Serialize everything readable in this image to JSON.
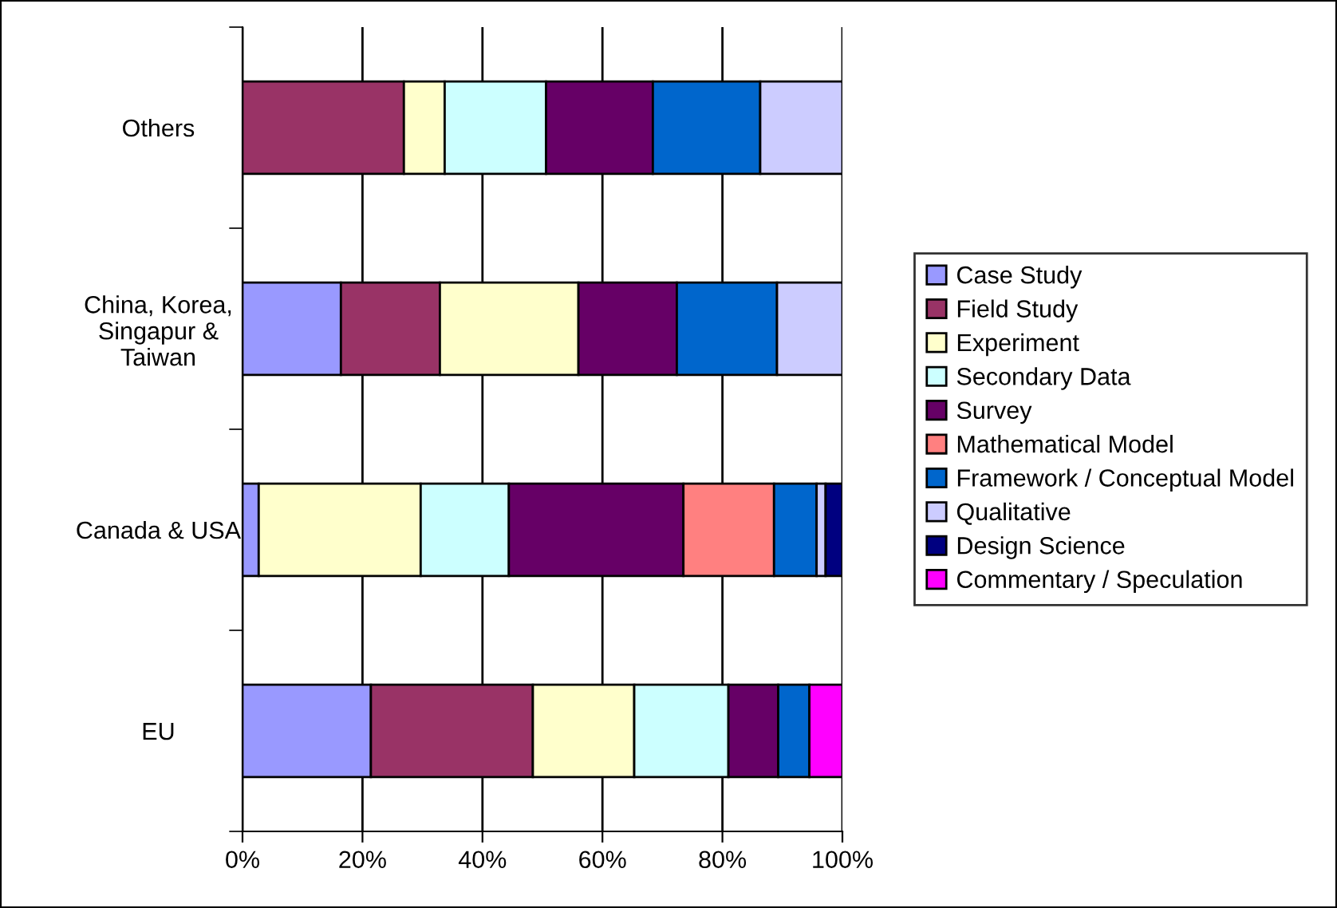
{
  "chart_data": {
    "type": "bar",
    "orientation": "horizontal",
    "stacked": true,
    "categories": [
      "Others",
      "China, Korea,\nSingapur &\nTaiwan",
      "Canada & USA",
      "EU"
    ],
    "series": [
      {
        "name": "Case Study",
        "color": "#9999ff",
        "values": [
          null,
          16.4,
          2.7,
          21.4
        ]
      },
      {
        "name": "Field Study",
        "color": "#993366",
        "values": [
          26.9,
          16.5,
          null,
          27.0
        ]
      },
      {
        "name": "Experiment",
        "color": "#ffffcc",
        "values": [
          6.8,
          23.1,
          27.0,
          16.9
        ]
      },
      {
        "name": "Secondary Data",
        "color": "#ccffff",
        "values": [
          16.9,
          null,
          14.7,
          15.7
        ]
      },
      {
        "name": "Survey",
        "color": "#660066",
        "values": [
          17.8,
          16.4,
          29.1,
          8.3
        ]
      },
      {
        "name": "Mathematical Model",
        "color": "#ff8080",
        "values": [
          null,
          null,
          15.1,
          null
        ]
      },
      {
        "name": "Framework / Conceptual Model",
        "color": "#0066cc",
        "values": [
          17.9,
          16.7,
          7.1,
          5.2
        ]
      },
      {
        "name": "Qualitative",
        "color": "#ccccff",
        "values": [
          13.7,
          10.9,
          1.5,
          null
        ]
      },
      {
        "name": "Design Science",
        "color": "#000080",
        "values": [
          null,
          null,
          2.8,
          null
        ]
      },
      {
        "name": "Commentary / Speculation",
        "color": "#ff00ff",
        "values": [
          null,
          null,
          null,
          5.5
        ]
      }
    ],
    "xlim": [
      0,
      100
    ],
    "xticks": [
      {
        "value": 0,
        "label": "0%"
      },
      {
        "value": 20,
        "label": "20%"
      },
      {
        "value": 40,
        "label": "40%"
      },
      {
        "value": 60,
        "label": "60%"
      },
      {
        "value": 80,
        "label": "80%"
      },
      {
        "value": 100,
        "label": "100%"
      }
    ],
    "grid": "x",
    "legend": "right"
  }
}
